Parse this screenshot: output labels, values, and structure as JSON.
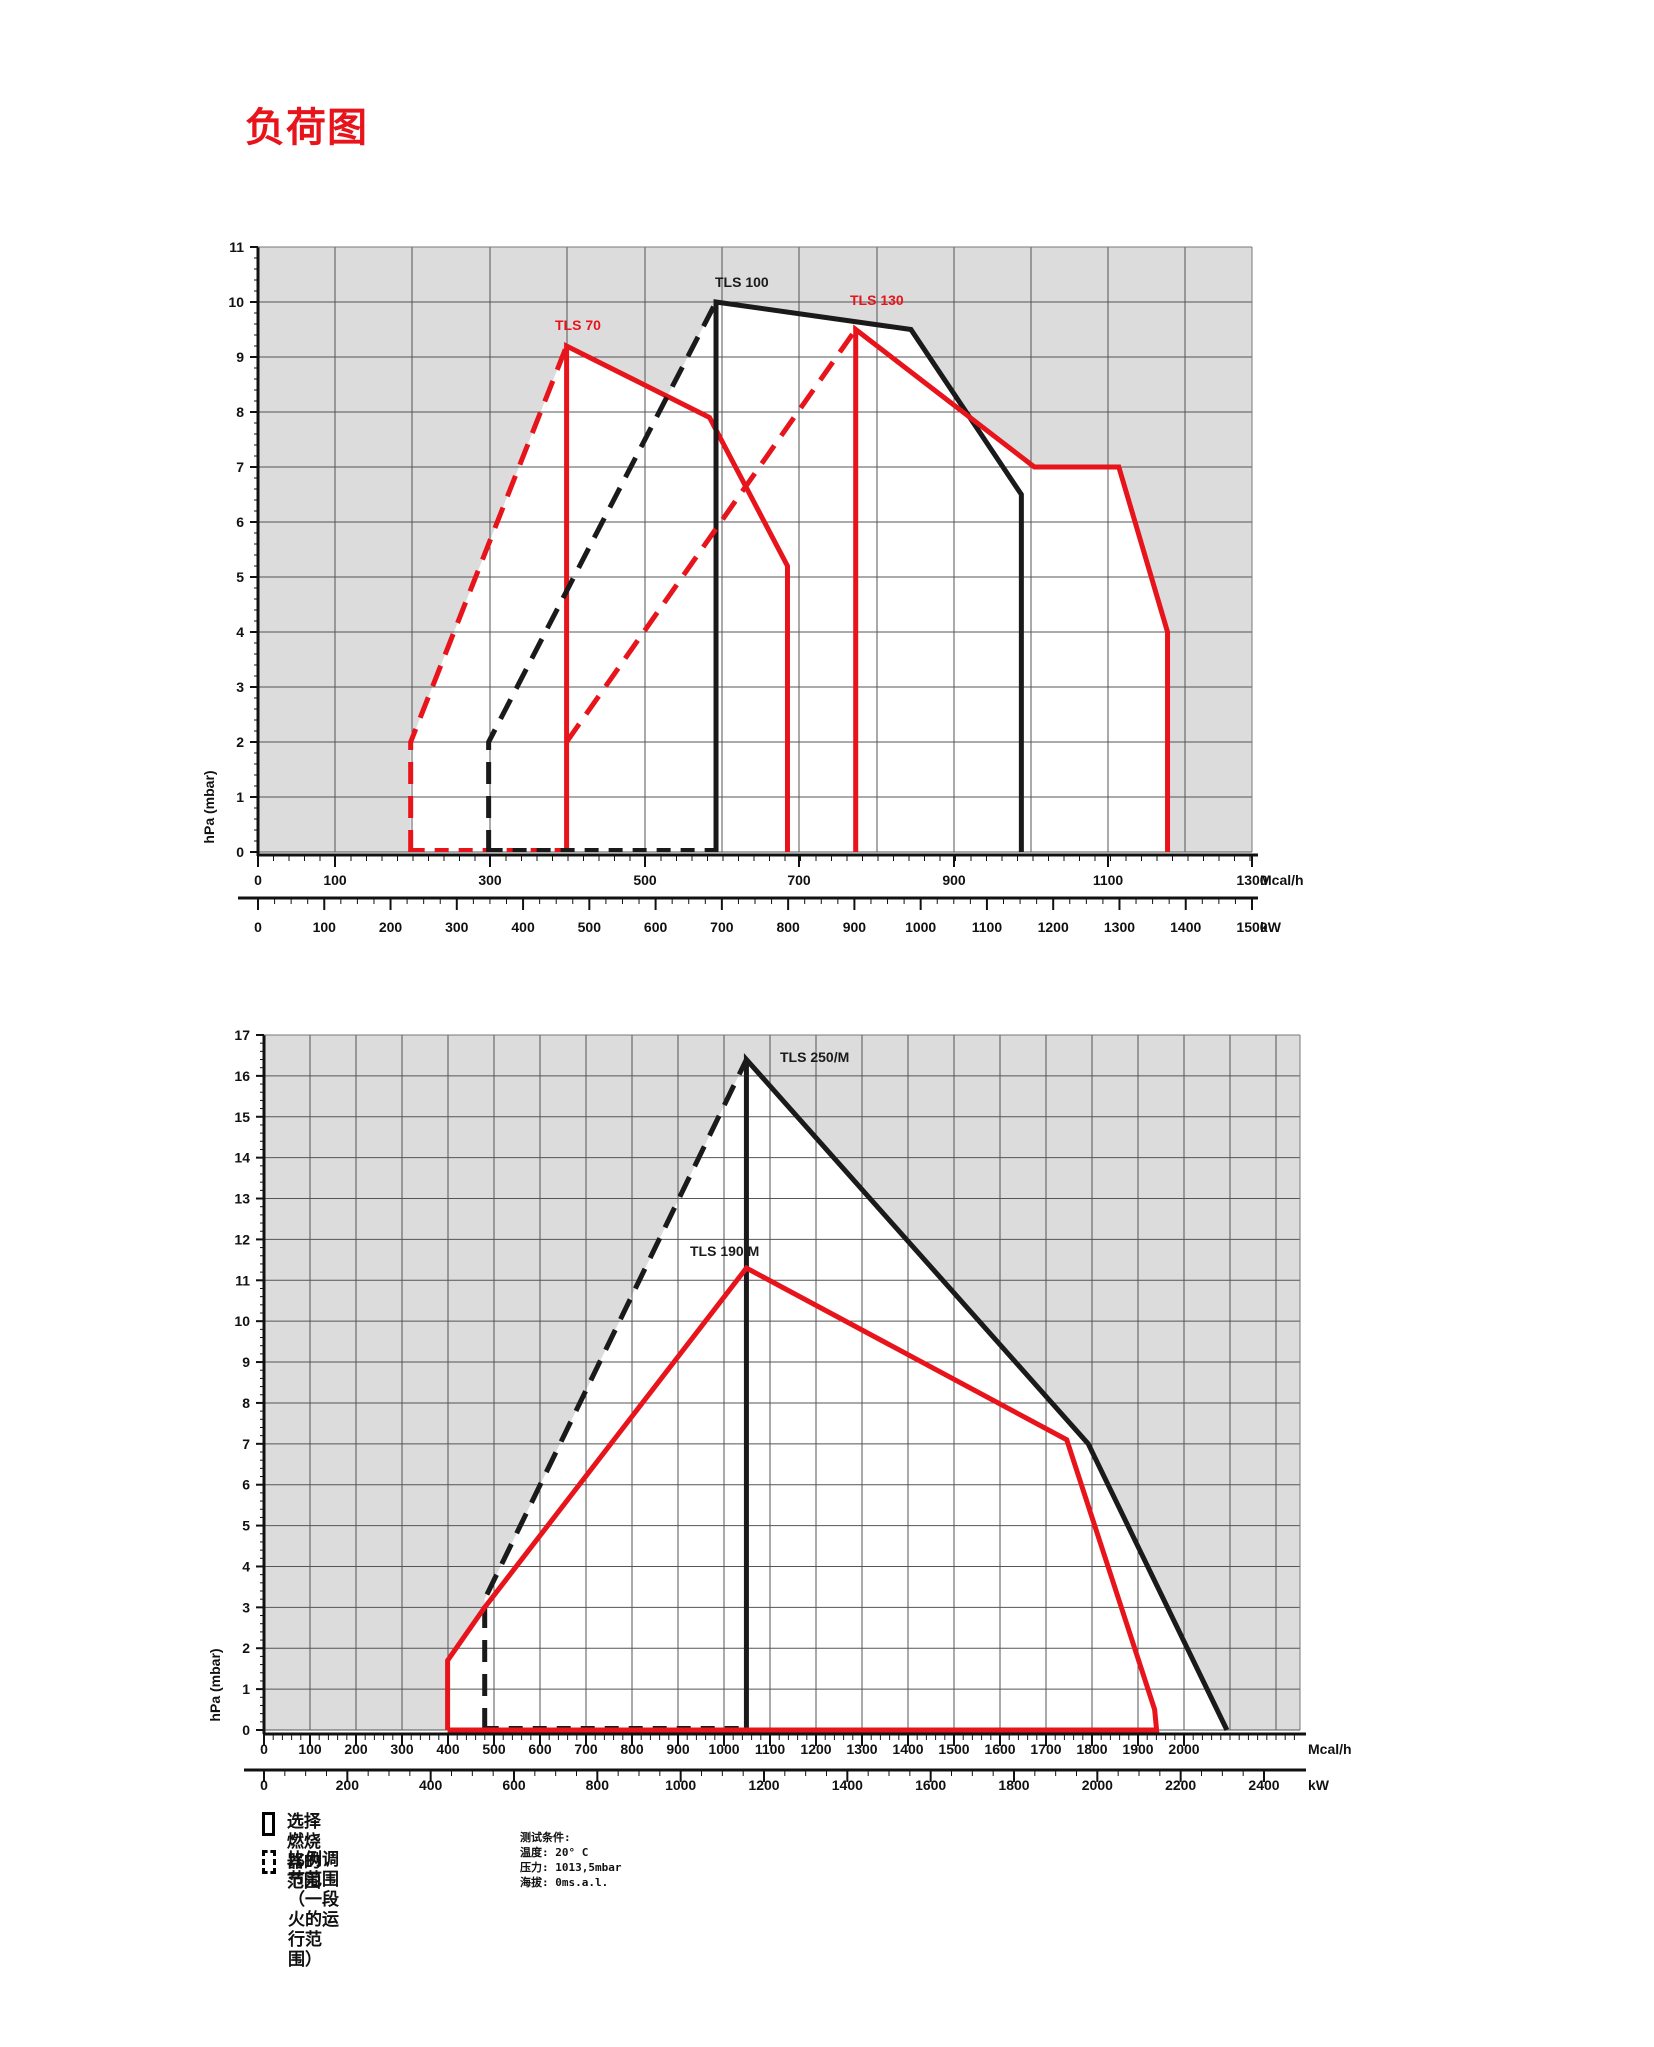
{
  "page": {
    "title": "负荷图"
  },
  "colors": {
    "red": "#e8141c",
    "black": "#1a1a1a",
    "grey_bg": "#dcdcdc",
    "grid": "#555555"
  },
  "chart_data": [
    {
      "type": "line",
      "title": "",
      "ylabel": "hPa (mbar)",
      "ylim": [
        0,
        11
      ],
      "yticks": [
        "0",
        "1",
        "2",
        "3",
        "4",
        "5",
        "6",
        "7",
        "8",
        "9",
        "10",
        "11"
      ],
      "xlim_kw": [
        0,
        1530
      ],
      "x_unit_kw": "kW",
      "x_unit_mcal": "Mcal/h",
      "kw_ticks": [
        "0",
        "100",
        "200",
        "300",
        "400",
        "500",
        "600",
        "700",
        "800",
        "900",
        "1000",
        "1100",
        "1200",
        "1300",
        "1400",
        "1500"
      ],
      "mcal_ticks": [
        "0",
        "100",
        "300",
        "500",
        "700",
        "900",
        "1100",
        "1300"
      ],
      "series": [
        {
          "name": "TLS 70",
          "color": "#e8141c",
          "solid": [
            [
              475,
              0
            ],
            [
              475,
              9.2
            ],
            [
              695,
              7.9
            ],
            [
              815,
              5.2
            ],
            [
              815,
              0
            ]
          ],
          "dashed": [
            [
              235,
              0
            ],
            [
              235,
              2
            ],
            [
              475,
              9.2
            ]
          ]
        },
        {
          "name": "TLS 100",
          "color": "#1a1a1a",
          "solid": [
            [
              705,
              0
            ],
            [
              705,
              10
            ],
            [
              1005,
              9.5
            ],
            [
              1175,
              6.5
            ],
            [
              1175,
              0
            ]
          ],
          "dashed": [
            [
              355,
              0
            ],
            [
              355,
              2
            ],
            [
              705,
              10
            ]
          ]
        },
        {
          "name": "TLS 130",
          "color": "#e8141c",
          "solid": [
            [
              920,
              0
            ],
            [
              920,
              9.5
            ],
            [
              1195,
              7
            ],
            [
              1325,
              7
            ],
            [
              1400,
              4
            ],
            [
              1400,
              0
            ]
          ],
          "dashed": [
            [
              475,
              2
            ],
            [
              920,
              9.5
            ]
          ]
        }
      ]
    },
    {
      "type": "line",
      "title": "",
      "ylabel": "hPa (mbar)",
      "ylim": [
        0,
        17
      ],
      "yticks": [
        "0",
        "1",
        "2",
        "3",
        "4",
        "5",
        "6",
        "7",
        "8",
        "9",
        "10",
        "11",
        "12",
        "13",
        "14",
        "15",
        "16",
        "17"
      ],
      "xlim_kw": [
        0,
        2560
      ],
      "x_unit_kw": "kW",
      "x_unit_mcal": "Mcal/h",
      "kw_ticks": [
        "0",
        "200",
        "400",
        "600",
        "800",
        "1000",
        "1200",
        "1400",
        "1600",
        "1800",
        "2000",
        "2200",
        "2400"
      ],
      "mcal_ticks": [
        "0",
        "100",
        "200",
        "300",
        "400",
        "500",
        "600",
        "700",
        "800",
        "900",
        "1000",
        "1100",
        "1200",
        "1300",
        "1400",
        "1500",
        "1600",
        "1700",
        "1800",
        "1900",
        "2000"
      ],
      "series": [
        {
          "name": "TLS 250/M",
          "color": "#1a1a1a",
          "solid": [
            [
              1235,
              0
            ],
            [
              1235,
              16.4
            ],
            [
              2110,
              7
            ],
            [
              2465,
              0
            ]
          ],
          "dashed": [
            [
              565,
              0
            ],
            [
              565,
              3.2
            ],
            [
              1235,
              16.4
            ]
          ]
        },
        {
          "name": "TLS 190/M",
          "color": "#e8141c",
          "solid": [
            [
              470,
              0
            ],
            [
              470,
              1.7
            ],
            [
              565,
              3
            ],
            [
              1235,
              11.3
            ],
            [
              2055,
              7.1
            ],
            [
              2280,
              0.5
            ],
            [
              2285,
              0
            ],
            [
              470,
              0
            ]
          ]
        }
      ]
    }
  ],
  "legend": {
    "solid_label": "选择燃烧器的范围",
    "dashed_label_1": "比例调节范围",
    "dashed_label_2": "（一段火的运行范围）"
  },
  "test_conditions": {
    "heading": "测试条件:",
    "temperature": "温度: 20° C",
    "pressure": "压力: 1013,5mbar",
    "altitude": "海拔: 0ms.a.l."
  }
}
